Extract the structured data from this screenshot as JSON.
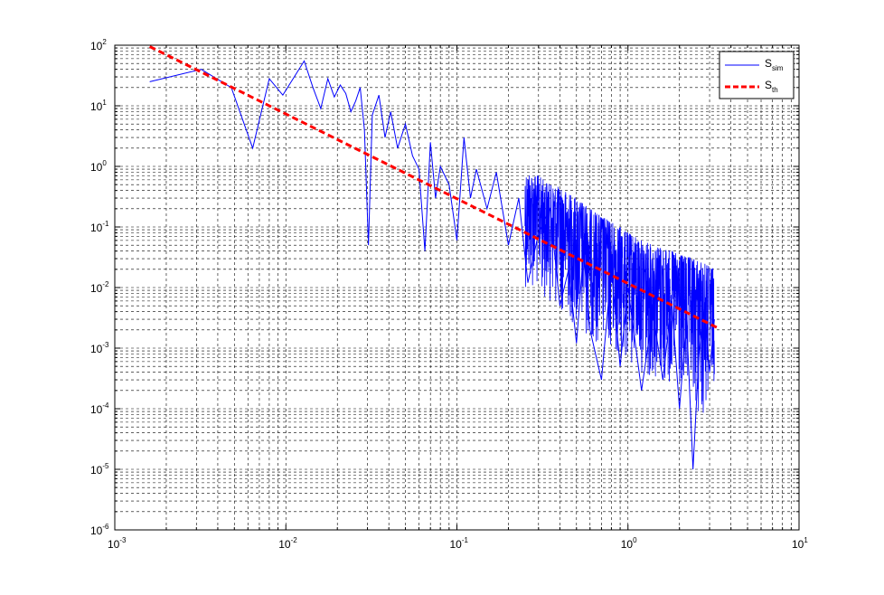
{
  "chart_data": {
    "type": "line",
    "title": "",
    "xlabel": "",
    "ylabel": "",
    "xscale": "log",
    "yscale": "log",
    "xlim": [
      0.001,
      10
    ],
    "ylim": [
      1e-06,
      100
    ],
    "grid": true,
    "grid_minor": true,
    "legend_position": "top-right",
    "x_ticks": [
      {
        "base": "10",
        "exp": "-3"
      },
      {
        "base": "10",
        "exp": "-2"
      },
      {
        "base": "10",
        "exp": "-1"
      },
      {
        "base": "10",
        "exp": "0"
      },
      {
        "base": "10",
        "exp": "1"
      }
    ],
    "y_ticks": [
      {
        "base": "10",
        "exp": "-6"
      },
      {
        "base": "10",
        "exp": "-5"
      },
      {
        "base": "10",
        "exp": "-4"
      },
      {
        "base": "10",
        "exp": "-3"
      },
      {
        "base": "10",
        "exp": "-2"
      },
      {
        "base": "10",
        "exp": "-1"
      },
      {
        "base": "10",
        "exp": "0"
      },
      {
        "base": "10",
        "exp": "1"
      },
      {
        "base": "10",
        "exp": "2"
      }
    ],
    "series": [
      {
        "name": "S_sim",
        "legend_main": "S",
        "legend_sub": "sim",
        "style": "solid",
        "color": "#0000ff",
        "x": [
          0.0016,
          0.0032,
          0.0048,
          0.0064,
          0.008,
          0.0096,
          0.0112,
          0.0128,
          0.0144,
          0.016,
          0.0176,
          0.0192,
          0.0208,
          0.0224,
          0.024,
          0.0256,
          0.0272,
          0.0288,
          0.0304,
          0.032,
          0.035,
          0.038,
          0.041,
          0.045,
          0.05,
          0.055,
          0.06,
          0.065,
          0.07,
          0.075,
          0.08,
          0.09,
          0.1,
          0.11,
          0.12,
          0.13,
          0.15,
          0.17,
          0.2,
          0.23,
          0.26,
          0.3,
          0.35,
          0.4,
          0.45,
          0.5,
          0.55,
          0.6,
          0.7,
          0.8,
          0.9,
          1.0,
          1.2,
          1.4,
          1.6,
          1.8,
          2.0,
          2.2,
          2.4,
          2.6,
          2.8,
          3.0,
          3.2
        ],
        "y": [
          25,
          40,
          20,
          2,
          28,
          15,
          30,
          55,
          20,
          9,
          28,
          14,
          22,
          16,
          8,
          12,
          20,
          4,
          0.05,
          7,
          15,
          3,
          8,
          2,
          5,
          1.5,
          0.9,
          0.04,
          2.5,
          0.3,
          1,
          0.5,
          0.06,
          3,
          0.3,
          0.9,
          0.2,
          0.8,
          0.05,
          0.3,
          0.012,
          0.08,
          0.2,
          0.005,
          0.02,
          0.0012,
          0.04,
          0.002,
          0.0003,
          0.02,
          0.0005,
          0.01,
          0.0002,
          0.004,
          0.0003,
          0.006,
          0.0001,
          0.003,
          1e-05,
          0.0008,
          0.005,
          0.0004,
          0.003
        ],
        "band": {
          "x": [
            0.25,
            0.3,
            0.35,
            0.4,
            0.45,
            0.5,
            0.6,
            0.7,
            0.8,
            0.9,
            1.0,
            1.2,
            1.4,
            1.6,
            1.8,
            2.0,
            2.4,
            2.8,
            3.2
          ],
          "upper": [
            0.8,
            0.7,
            0.5,
            0.45,
            0.35,
            0.3,
            0.2,
            0.15,
            0.12,
            0.1,
            0.08,
            0.06,
            0.05,
            0.045,
            0.04,
            0.035,
            0.03,
            0.025,
            0.02
          ],
          "lower": [
            0.01,
            0.008,
            0.006,
            0.004,
            0.003,
            0.002,
            0.0015,
            0.001,
            0.0008,
            0.0006,
            0.0005,
            0.0004,
            0.0003,
            0.00025,
            0.0002,
            0.00015,
            0.0001,
            5e-05,
            0.0003
          ]
        }
      },
      {
        "name": "S_th",
        "legend_main": "S",
        "legend_sub": "th",
        "style": "dashed",
        "color": "#ff0000",
        "x": [
          0.0016,
          3.3
        ],
        "y": [
          95,
          0.0022
        ]
      }
    ]
  }
}
